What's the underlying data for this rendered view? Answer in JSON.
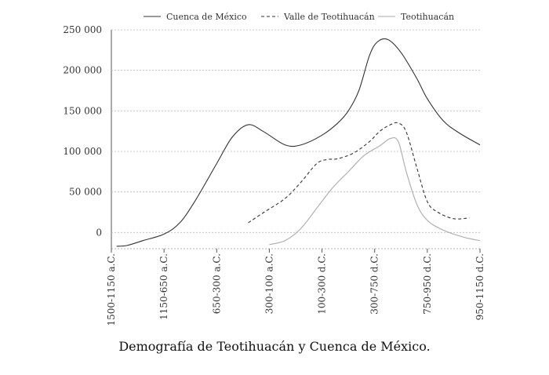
{
  "caption": "Demografía de Teotihuacán y Cuenca de México.",
  "chart_data": {
    "type": "line",
    "title": "",
    "xlabel": "",
    "ylabel": "",
    "grid": true,
    "legend_position": "top",
    "categories": [
      "1500-1150 a.C.",
      "1150-650 a.C.",
      "650-300 a.C.",
      "300-100 a.C.",
      "100-300 d.C.",
      "300-750 d.C.",
      "750-950 d.C.",
      "950-1150 d.C."
    ],
    "ylim": [
      -20000,
      250000
    ],
    "yticks": [
      {
        "value": 0,
        "label": "0"
      },
      {
        "value": 50000,
        "label": "50 000"
      },
      {
        "value": 100000,
        "label": "100 000"
      },
      {
        "value": 150000,
        "label": "150 000"
      },
      {
        "value": 200000,
        "label": "200 000"
      },
      {
        "value": 250000,
        "label": "250 000"
      }
    ],
    "series": [
      {
        "name": "Cuenca de México",
        "color": "#333333",
        "dash": "solid",
        "x": [
          0.1,
          0.3,
          0.6,
          1.0,
          1.3,
          1.6,
          2.0,
          2.3,
          2.6,
          2.9,
          3.3,
          3.6,
          4.0,
          4.3,
          4.5,
          4.7,
          4.9,
          5.05,
          5.25,
          5.5,
          5.8,
          6.0,
          6.3,
          6.6,
          7.0
        ],
        "values": [
          -17000,
          -16000,
          -10000,
          -2000,
          12000,
          40000,
          85000,
          118000,
          133000,
          124000,
          108000,
          108000,
          120000,
          135000,
          150000,
          175000,
          218000,
          235000,
          238000,
          222000,
          190000,
          165000,
          138000,
          123000,
          108000
        ]
      },
      {
        "name": "Valle de Teotihuacán",
        "color": "#333333",
        "dash": "dashed",
        "x": [
          2.6,
          2.9,
          3.3,
          3.6,
          3.9,
          4.1,
          4.3,
          4.6,
          4.9,
          5.1,
          5.3,
          5.45,
          5.6,
          5.8,
          6.0,
          6.2,
          6.5,
          6.8
        ],
        "values": [
          12000,
          25000,
          42000,
          62000,
          85000,
          90000,
          91000,
          98000,
          112000,
          125000,
          133000,
          135000,
          124000,
          80000,
          38000,
          25000,
          17000,
          18000
        ]
      },
      {
        "name": "Teotihuacán",
        "color": "#aaaaaa",
        "dash": "solid",
        "x": [
          3.0,
          3.3,
          3.6,
          3.9,
          4.2,
          4.5,
          4.8,
          5.1,
          5.3,
          5.45,
          5.6,
          5.8,
          6.0,
          6.3,
          6.7,
          7.0
        ],
        "values": [
          -15000,
          -10000,
          5000,
          30000,
          55000,
          75000,
          95000,
          107000,
          116000,
          112000,
          75000,
          35000,
          15000,
          3000,
          -6000,
          -10000
        ]
      }
    ]
  }
}
